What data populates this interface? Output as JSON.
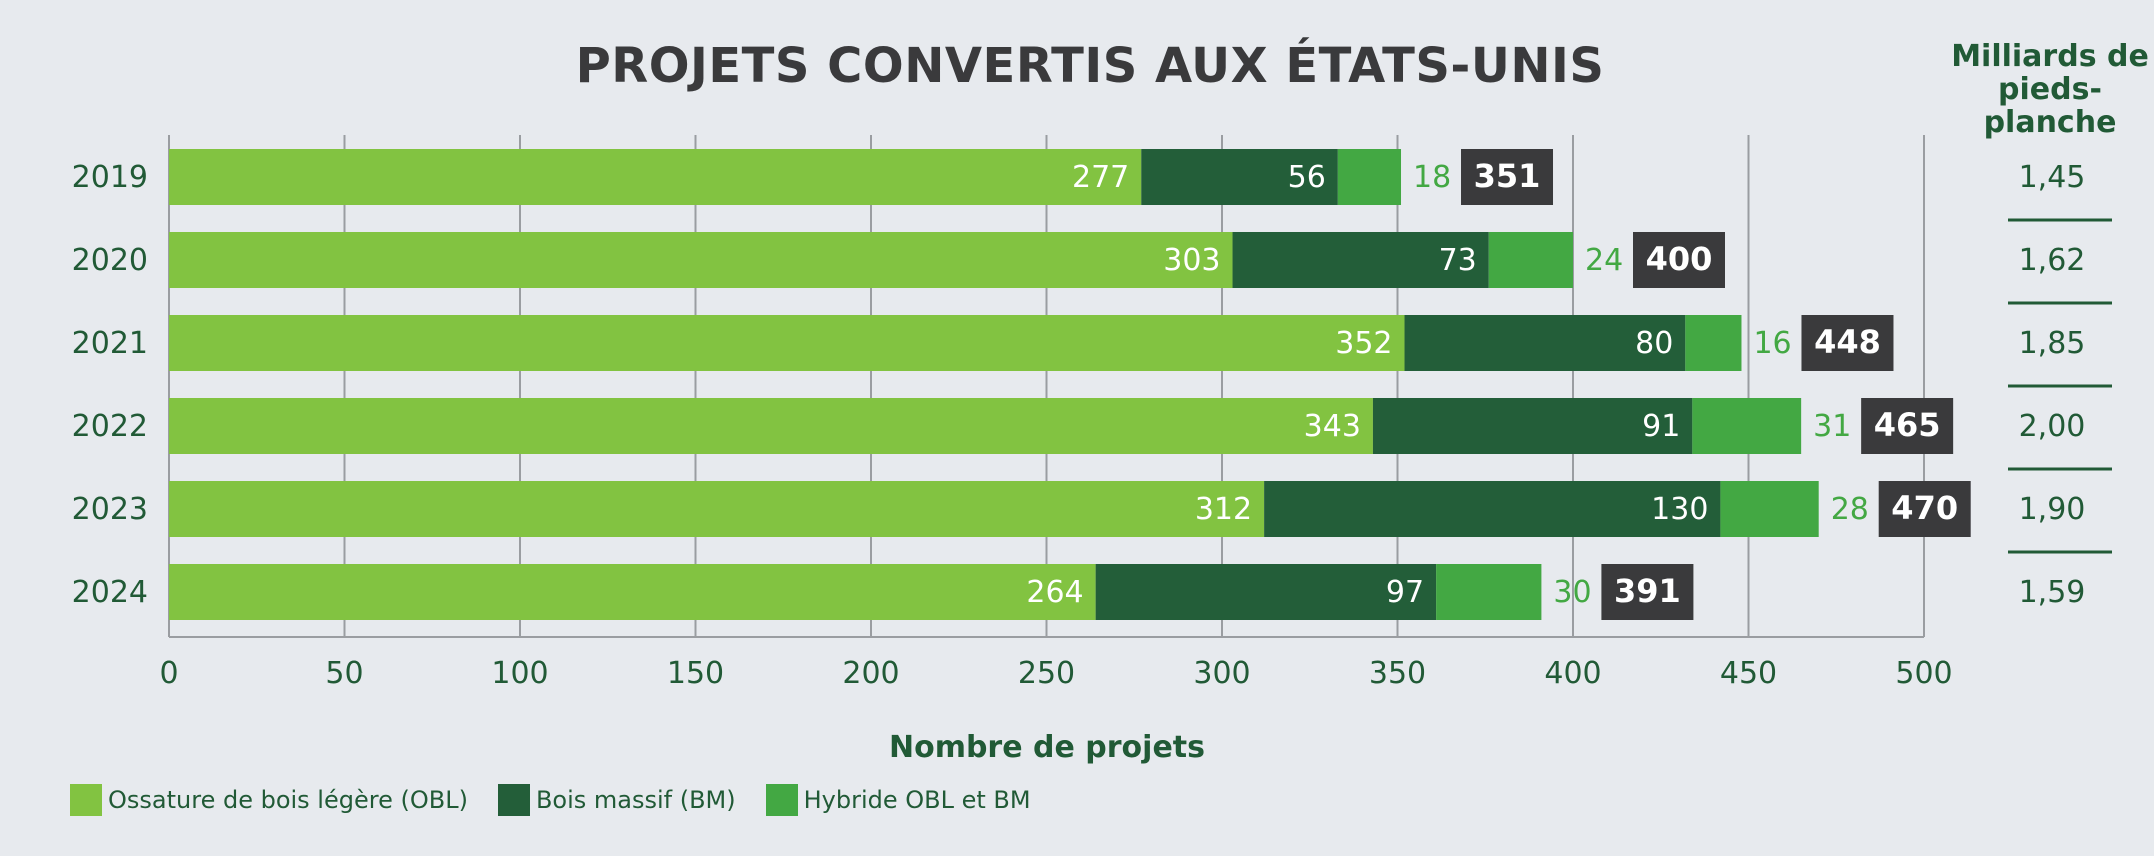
{
  "chart_data": {
    "type": "bar",
    "orientation": "horizontal",
    "stacked": true,
    "title": "PROJETS CONVERTIS AUX ÉTATS-UNIS",
    "xlabel": "Nombre de projets",
    "ylabel": "",
    "xlim": [
      0,
      500
    ],
    "xticks": [
      "0",
      "50",
      "100",
      "150",
      "200",
      "250",
      "300",
      "350",
      "400",
      "450",
      "500"
    ],
    "grid": true,
    "categories": [
      "2019",
      "2020",
      "2021",
      "2022",
      "2023",
      "2024"
    ],
    "series": [
      {
        "name": "Ossature de bois légère (OBL)",
        "color": "#82c341",
        "values": [
          277,
          303,
          352,
          343,
          312,
          264
        ]
      },
      {
        "name": "Bois massif (BM)",
        "color": "#235e39",
        "values": [
          56,
          73,
          80,
          91,
          130,
          97
        ]
      },
      {
        "name": "Hybride OBL et BM",
        "color": "#43a843",
        "values": [
          18,
          24,
          16,
          31,
          28,
          30
        ]
      }
    ],
    "totals": [
      "351",
      "400",
      "448",
      "465",
      "470",
      "391"
    ],
    "right_column": {
      "header": "Milliards de pieds-planche",
      "values": [
        "1,45",
        "1,62",
        "1,85",
        "2,00",
        "1,90",
        "1,59"
      ]
    },
    "legend_position": "bottom-left"
  }
}
